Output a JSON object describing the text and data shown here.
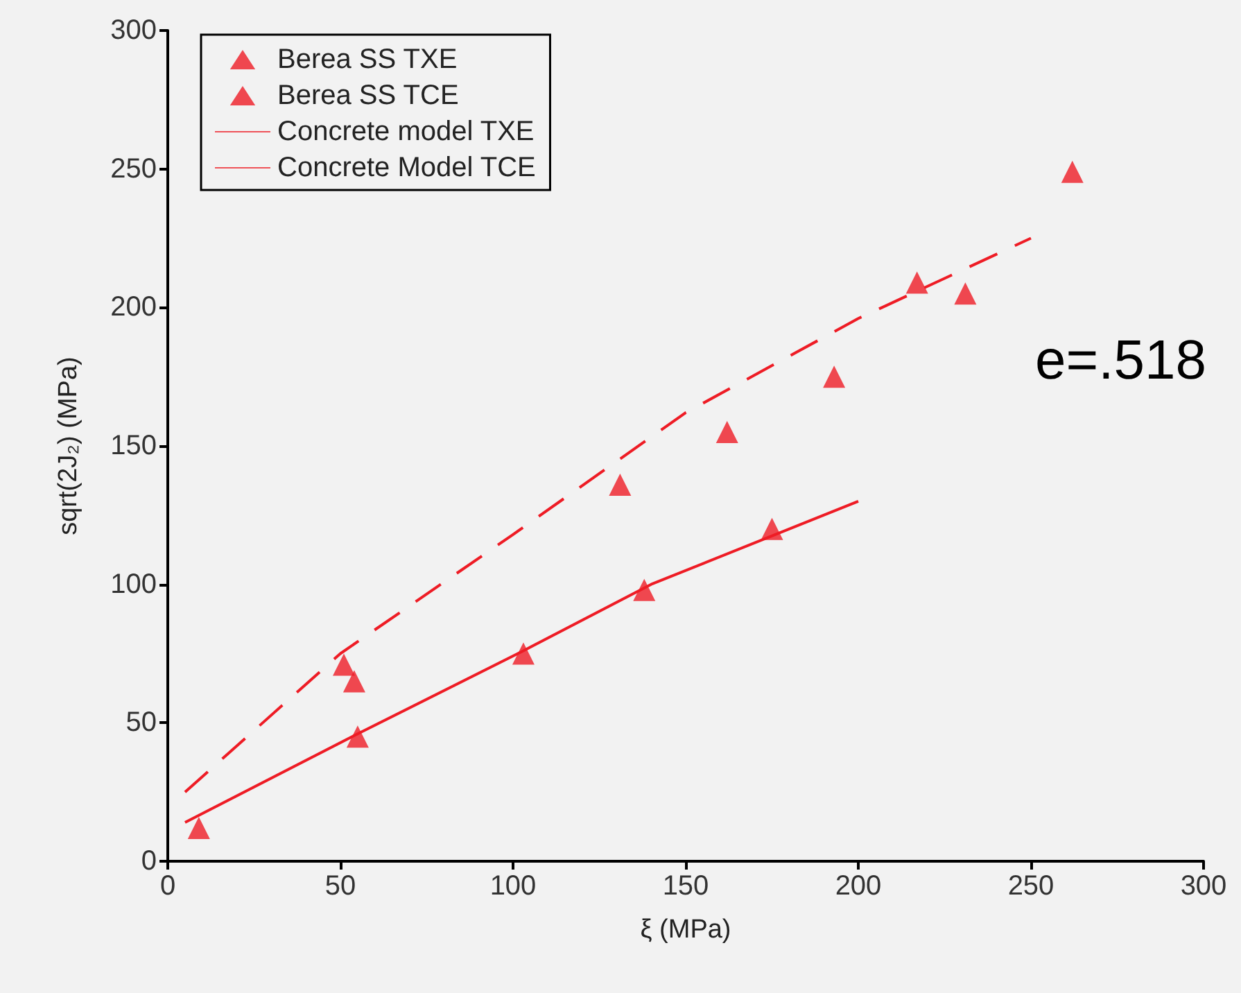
{
  "chart_data": {
    "type": "scatter",
    "xlabel": "ξ (MPa)",
    "ylabel": "sqrt(2J₂) (MPa)",
    "annotations": [
      "e=.518"
    ],
    "xlim": [
      0,
      300
    ],
    "xticks": [
      0,
      50,
      100,
      150,
      200,
      250,
      300
    ],
    "ylim": [
      0,
      300
    ],
    "yticks": [
      0,
      50,
      100,
      150,
      200,
      250,
      300
    ],
    "grid": false,
    "legend": "top left",
    "series": [
      {
        "name": "Berea SS TXE",
        "marker": "triangle",
        "color": "#ee1c25",
        "x": [
          9,
          55,
          103,
          138,
          175
        ],
        "values": [
          12,
          45,
          75,
          98,
          120
        ]
      },
      {
        "name": "Berea SS TCE",
        "marker": "triangle",
        "color": "#ee1c25",
        "x": [
          51,
          54,
          131,
          162,
          193,
          217,
          231,
          262
        ],
        "values": [
          71,
          65,
          136,
          155,
          175,
          209,
          205,
          249
        ]
      },
      {
        "name": "Concrete model TXE",
        "type": "line",
        "marker": "none",
        "line_style": "solid",
        "color": "#ee1c25",
        "x": [
          5,
          55,
          103,
          140,
          200
        ],
        "values": [
          14,
          46,
          76,
          100,
          130
        ]
      },
      {
        "name": "Concrete Model TCE",
        "type": "line",
        "marker": "none",
        "line_style": "dashed",
        "color": "#ee1c25",
        "x": [
          5,
          50,
          100,
          150,
          200,
          250
        ],
        "values": [
          25,
          75,
          118,
          162,
          196,
          225
        ]
      }
    ]
  }
}
